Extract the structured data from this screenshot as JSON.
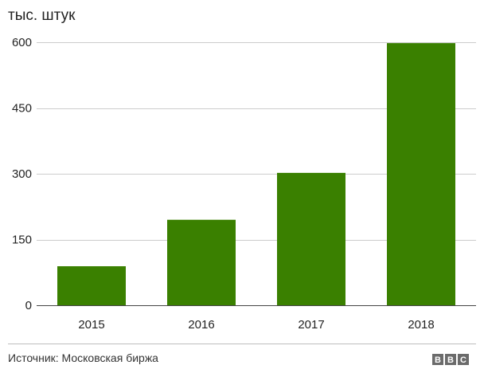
{
  "chart_data": {
    "type": "bar",
    "title": "",
    "unit_label": "тыс. штук",
    "categories": [
      "2015",
      "2016",
      "2017",
      "2018"
    ],
    "values": [
      89,
      195,
      302,
      598
    ],
    "yticks": [
      0,
      150,
      300,
      450,
      600
    ],
    "ylim": [
      0,
      600
    ],
    "xlabel": "",
    "ylabel": "тыс. штук",
    "grid": true,
    "bar_color": "#3a8000"
  },
  "footer": {
    "source": "Источник: Московская биржа",
    "logo_letters": [
      "B",
      "B",
      "C"
    ]
  }
}
